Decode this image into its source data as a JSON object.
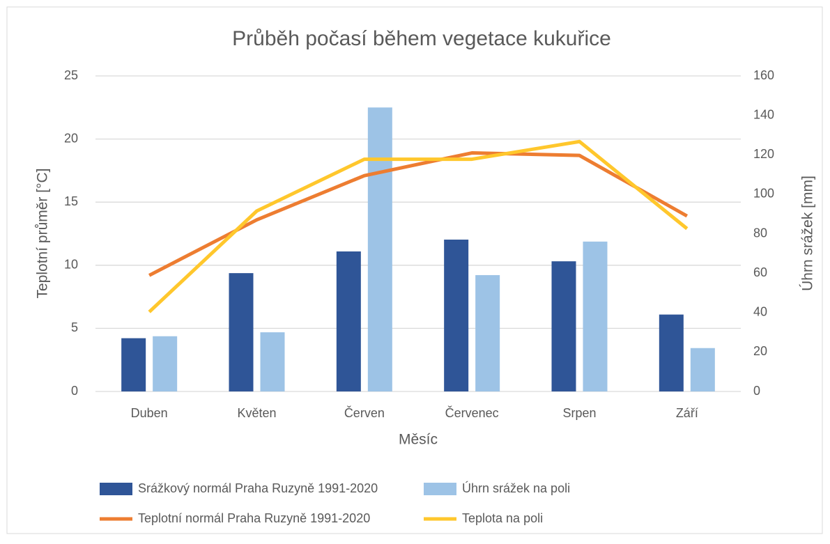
{
  "chart_data": {
    "type": "bar-line",
    "title": "Průběh počasí během vegetace kukuřice",
    "xlabel": "Měsíc",
    "ylabel": "Teplotní průměr [°C]",
    "y2label": "Úhrn srážek [mm]",
    "categories": [
      "Duben",
      "Květen",
      "Červen",
      "Červenec",
      "Srpen",
      "Září"
    ],
    "ylim": [
      0,
      25
    ],
    "yticks": [
      0,
      5,
      10,
      15,
      20,
      25
    ],
    "y2lim": [
      0,
      160
    ],
    "y2ticks": [
      0,
      20,
      40,
      60,
      80,
      100,
      120,
      140,
      160
    ],
    "grid": true,
    "legend": "bottom",
    "series": [
      {
        "name": "Srážkový normál Praha Ruzyně 1991-2020",
        "type": "bar",
        "axis": "y2",
        "color": "#2f5597",
        "values": [
          27,
          60,
          71,
          77,
          66,
          39
        ]
      },
      {
        "name": "Úhrn srážek na poli",
        "type": "bar",
        "axis": "y2",
        "color": "#9dc3e6",
        "values": [
          28,
          30,
          144,
          59,
          76,
          22
        ]
      },
      {
        "name": "Teplotní normál Praha Ruzyně 1991-2020",
        "type": "line",
        "color": "#ed7d31",
        "values": [
          9.2,
          13.6,
          17.1,
          18.9,
          18.7,
          13.9
        ]
      },
      {
        "name": "Teplota na poli",
        "type": "line",
        "color": "#ffc72c",
        "values": [
          6.3,
          14.3,
          18.4,
          18.4,
          19.8,
          12.9
        ]
      }
    ]
  }
}
